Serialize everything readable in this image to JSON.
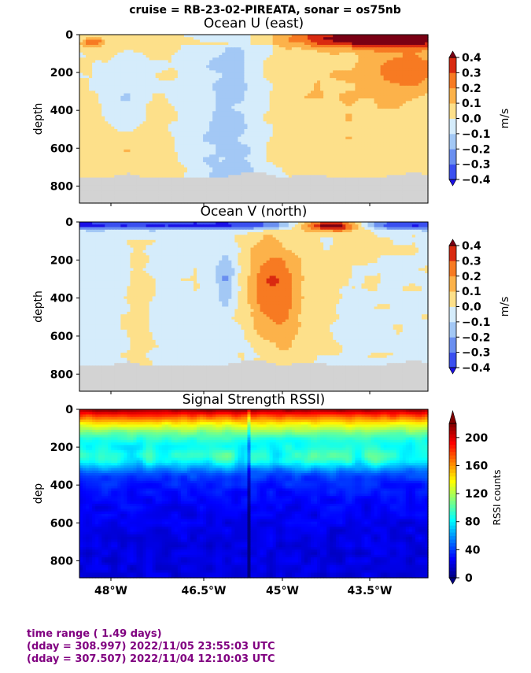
{
  "suptitle": "cruise = RB-23-02-PIREATA,  sonar = os75nb",
  "panels": [
    {
      "title": "Ocean U (east)",
      "ylabel": "depth",
      "cbar_label": "m/s",
      "cbar_ticks": [
        "0.4",
        "0.3",
        "0.2",
        "0.1",
        "0.0",
        "−0.1",
        "−0.2",
        "−0.3",
        "−0.4"
      ]
    },
    {
      "title": "Ocean V (north)",
      "ylabel": "depth",
      "cbar_label": "m/s",
      "cbar_ticks": [
        "0.4",
        "0.3",
        "0.2",
        "0.1",
        "0.0",
        "−0.1",
        "−0.2",
        "−0.3",
        "−0.4"
      ]
    },
    {
      "title": "Signal Strength RSSI)",
      "ylabel": "dep",
      "cbar_label": "RSSI counts",
      "cbar_ticks": [
        "200",
        "160",
        "120",
        "80",
        "40",
        "0"
      ]
    }
  ],
  "y_ticks": [
    "0",
    "200",
    "400",
    "600",
    "800"
  ],
  "x_ticks": [
    "48°W",
    "46.5°W",
    "45°W",
    "43.5°W"
  ],
  "footer": {
    "line1": "time range ( 1.49 days)",
    "line2": "(dday = 308.997) 2022/11/05 23:55:03 UTC",
    "line3": "(dday = 307.507) 2022/11/04 12:10:03 UTC"
  },
  "chart_data": [
    {
      "type": "heatmap",
      "title": "Ocean U (east)",
      "ylabel": "depth",
      "xticks": [
        "48°W",
        "46.5°W",
        "45°W",
        "43.5°W"
      ],
      "x_values": [
        -48.0,
        -46.5,
        -45.0,
        -43.5
      ],
      "xlim": [
        -48.5,
        -43.1
      ],
      "ylim": [
        890,
        0
      ],
      "colorbar": {
        "label": "m/s",
        "range": [
          -0.4,
          0.4
        ],
        "levels": [
          -0.4,
          -0.3,
          -0.2,
          -0.1,
          0.0,
          0.1,
          0.2,
          0.3,
          0.4
        ]
      },
      "colors": [
        "#1a10e6",
        "#3a4ff0",
        "#6a8ff0",
        "#a3c8f5",
        "#d5ecfb",
        "#fff5c6",
        "#fde08a",
        "#fcb24a",
        "#f77a22",
        "#d92a10",
        "#7a0014"
      ],
      "no_data_color": "#d3d3d3",
      "bottom_depth": 750
    },
    {
      "type": "heatmap",
      "title": "Ocean V (north)",
      "ylabel": "depth",
      "xticks": [
        "48°W",
        "46.5°W",
        "45°W",
        "43.5°W"
      ],
      "x_values": [
        -48.0,
        -46.5,
        -45.0,
        -43.5
      ],
      "xlim": [
        -48.5,
        -43.1
      ],
      "ylim": [
        890,
        0
      ],
      "colorbar": {
        "label": "m/s",
        "range": [
          -0.4,
          0.4
        ],
        "levels": [
          -0.4,
          -0.3,
          -0.2,
          -0.1,
          0.0,
          0.1,
          0.2,
          0.3,
          0.4
        ]
      },
      "colors": [
        "#1a10e6",
        "#3a4ff0",
        "#6a8ff0",
        "#a3c8f5",
        "#d5ecfb",
        "#fff5c6",
        "#fde08a",
        "#fcb24a",
        "#f77a22",
        "#d92a10",
        "#7a0014"
      ],
      "no_data_color": "#d3d3d3",
      "bottom_depth": 750
    },
    {
      "type": "heatmap",
      "title": "Signal Strength RSSI)",
      "ylabel": "dep",
      "xticks": [
        "48°W",
        "46.5°W",
        "45°W",
        "43.5°W"
      ],
      "x_values": [
        -48.0,
        -46.5,
        -45.0,
        -43.5
      ],
      "xlim": [
        -48.5,
        -43.1
      ],
      "ylim": [
        890,
        0
      ],
      "colorbar": {
        "label": "RSSI counts",
        "range": [
          0,
          220
        ],
        "ticks": [
          0,
          40,
          80,
          120,
          160,
          200
        ],
        "colormap": "jet"
      }
    }
  ]
}
